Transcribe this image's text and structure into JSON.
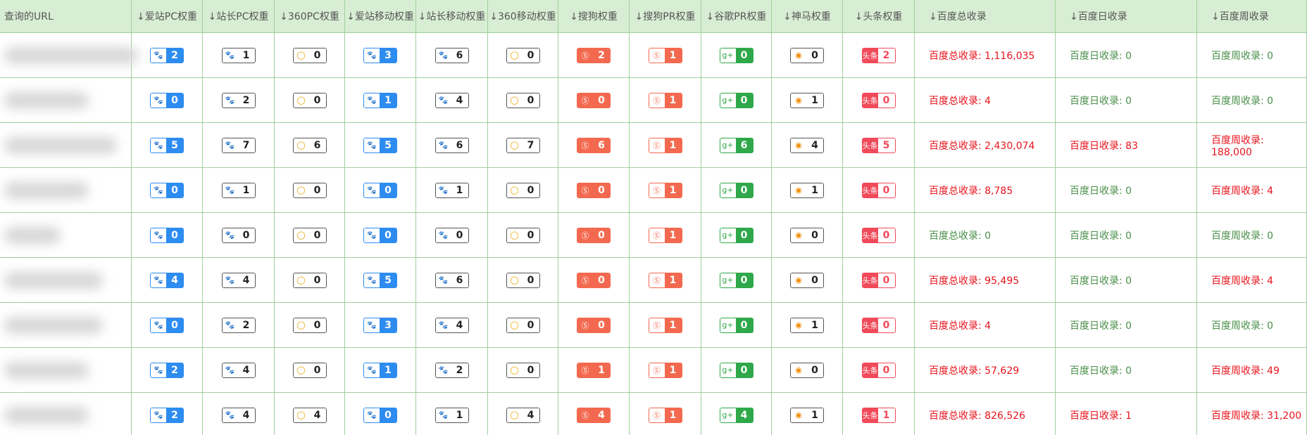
{
  "table": {
    "headers": [
      "查询的URL",
      "↓爱站PC权重",
      "↓站长PC权重",
      "↓360PC权重",
      "↓爱站移动权重",
      "↓站长移动权重",
      "↓360移动权重",
      "↓搜狗权重",
      "↓搜狗PR权重",
      "↓谷歌PR权重",
      "↓神马权重",
      "↓头条权重",
      "↓百度总收录",
      "↓百度日收录",
      "↓百度周收录"
    ],
    "rows": [
      [
        2,
        1,
        0,
        3,
        6,
        0,
        2,
        1,
        0,
        0,
        2,
        "百度总收录: 1,116,035",
        "百度日收录: 0",
        "百度周收录: 0"
      ],
      [
        0,
        2,
        0,
        1,
        4,
        0,
        0,
        1,
        0,
        1,
        0,
        "百度总收录: 4",
        "百度日收录: 0",
        "百度周收录: 0"
      ],
      [
        5,
        7,
        6,
        5,
        6,
        7,
        6,
        1,
        6,
        4,
        5,
        "百度总收录: 2,430,074",
        "百度日收录: 83",
        "百度周收录: 188,000"
      ],
      [
        0,
        1,
        0,
        0,
        1,
        0,
        0,
        1,
        0,
        1,
        0,
        "百度总收录: 8,785",
        "百度日收录: 0",
        "百度周收录: 4"
      ],
      [
        0,
        0,
        0,
        0,
        0,
        0,
        0,
        1,
        0,
        0,
        0,
        "百度总收录: 0",
        "百度日收录: 0",
        "百度周收录: 0"
      ],
      [
        4,
        4,
        0,
        5,
        6,
        0,
        0,
        1,
        0,
        0,
        0,
        "百度总收录: 95,495",
        "百度日收录: 0",
        "百度周收录: 4"
      ],
      [
        0,
        2,
        0,
        3,
        4,
        0,
        0,
        1,
        0,
        1,
        0,
        "百度总收录: 4",
        "百度日收录: 0",
        "百度周收录: 0"
      ],
      [
        2,
        4,
        0,
        1,
        2,
        0,
        1,
        1,
        0,
        0,
        0,
        "百度总收录: 57,629",
        "百度日收录: 0",
        "百度周收录: 49"
      ],
      [
        2,
        4,
        4,
        0,
        1,
        4,
        4,
        1,
        4,
        1,
        1,
        "百度总收录: 826,526",
        "百度日收录: 1",
        "百度周收录: 31,200"
      ]
    ]
  }
}
